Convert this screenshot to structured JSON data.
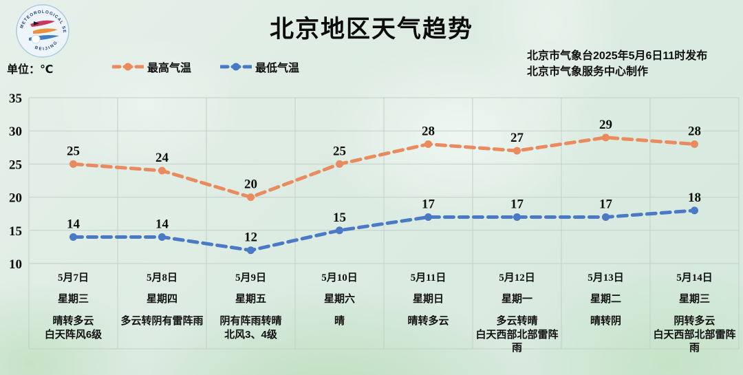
{
  "header": {
    "title": "北京地区天气趋势",
    "unit_label": "单位：℃",
    "publish_line1": "北京市气象台2025年5月6日11时发布",
    "publish_line2": "北京市气象服务中心制作",
    "logo_top_text": "METEOROLOGICAL SERVICE",
    "logo_bottom_text": "BEIJING"
  },
  "legend": {
    "items": [
      {
        "label": "最高气温",
        "color": "#E98B5E"
      },
      {
        "label": "最低气温",
        "color": "#4A7AC6"
      }
    ]
  },
  "chart_data": {
    "type": "line",
    "title": "北京地区天气趋势",
    "ylabel": "单位：℃",
    "ylim": [
      10,
      35
    ],
    "yticks": [
      10,
      15,
      20,
      25,
      30,
      35
    ],
    "grid": true,
    "legend_position": "top",
    "line_style": "dashed",
    "categories": [
      "5月7日",
      "5月8日",
      "5月9日",
      "5月10日",
      "5月11日",
      "5月12日",
      "5月13日",
      "5月14日"
    ],
    "weekdays": [
      "星期三",
      "星期四",
      "星期五",
      "星期六",
      "星期日",
      "星期一",
      "星期二",
      "星期三"
    ],
    "weather": [
      [
        "晴转多云",
        "白天阵风6级"
      ],
      [
        "多云转阴有雷阵雨"
      ],
      [
        "阴有阵雨转晴",
        "北风3、4级"
      ],
      [
        "晴"
      ],
      [
        "晴转多云"
      ],
      [
        "多云转晴",
        "白天西部北部雷阵雨"
      ],
      [
        "晴转阴"
      ],
      [
        "阴转多云",
        "白天西部北部雷阵雨"
      ]
    ],
    "series": [
      {
        "name": "最高气温",
        "color": "#E98B5E",
        "values": [
          25,
          24,
          20,
          25,
          28,
          27,
          29,
          28
        ]
      },
      {
        "name": "最低气温",
        "color": "#4A7AC6",
        "values": [
          14,
          14,
          12,
          15,
          17,
          17,
          17,
          18
        ]
      }
    ],
    "grid_color": "#c2cfc4"
  }
}
